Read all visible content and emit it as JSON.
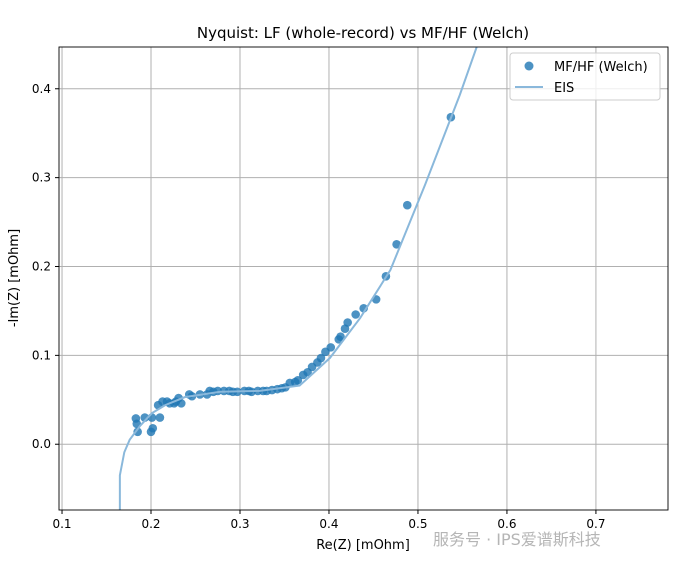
{
  "chart_data": {
    "type": "scatter",
    "title": "Nyquist: LF (whole-record) vs MF/HF (Welch)",
    "xlabel": "Re(Z) [mOhm]",
    "ylabel": "-Im(Z) [mOhm]",
    "xlim": [
      0.0966,
      0.781
    ],
    "ylim": [
      -0.074,
      0.447
    ],
    "xticks": [
      0.1,
      0.2,
      0.3,
      0.4,
      0.5,
      0.6,
      0.7
    ],
    "xtick_labels": [
      "0.1",
      "0.2",
      "0.3",
      "0.4",
      "0.5",
      "0.6",
      "0.7"
    ],
    "yticks": [
      0.0,
      0.1,
      0.2,
      0.3,
      0.4
    ],
    "ytick_labels": [
      "0.0",
      "0.1",
      "0.2",
      "0.3",
      "0.4"
    ],
    "grid": true,
    "legend": "top-right",
    "series": [
      {
        "name": "MF/HF (Welch)",
        "kind": "scatter",
        "color": "#1f77b4",
        "x": [
          0.183,
          0.184,
          0.185,
          0.193,
          0.201,
          0.2,
          0.202,
          0.21,
          0.208,
          0.213,
          0.218,
          0.221,
          0.226,
          0.228,
          0.231,
          0.234,
          0.243,
          0.246,
          0.255,
          0.263,
          0.266,
          0.27,
          0.275,
          0.282,
          0.288,
          0.292,
          0.297,
          0.305,
          0.31,
          0.313,
          0.32,
          0.326,
          0.33,
          0.336,
          0.342,
          0.347,
          0.351,
          0.356,
          0.362,
          0.365,
          0.371,
          0.376,
          0.381,
          0.387,
          0.391,
          0.396,
          0.402,
          0.411,
          0.413,
          0.418,
          0.421,
          0.43,
          0.439,
          0.453,
          0.464,
          0.476,
          0.488,
          0.537
        ],
        "y": [
          0.029,
          0.023,
          0.014,
          0.03,
          0.03,
          0.014,
          0.018,
          0.03,
          0.044,
          0.048,
          0.048,
          0.046,
          0.046,
          0.048,
          0.052,
          0.046,
          0.056,
          0.054,
          0.056,
          0.056,
          0.06,
          0.059,
          0.06,
          0.06,
          0.06,
          0.059,
          0.059,
          0.06,
          0.06,
          0.059,
          0.06,
          0.06,
          0.06,
          0.061,
          0.062,
          0.063,
          0.064,
          0.069,
          0.07,
          0.072,
          0.078,
          0.081,
          0.087,
          0.092,
          0.097,
          0.104,
          0.109,
          0.118,
          0.121,
          0.13,
          0.137,
          0.146,
          0.153,
          0.163,
          0.189,
          0.225,
          0.269,
          0.368
        ]
      },
      {
        "name": "EIS",
        "kind": "line",
        "color": "#8ab8db",
        "x": [
          0.165,
          0.165,
          0.17,
          0.176,
          0.188,
          0.201,
          0.216,
          0.238,
          0.278,
          0.322,
          0.367,
          0.401,
          0.435,
          0.469,
          0.508,
          0.547,
          0.566
        ],
        "y": [
          -0.074,
          -0.035,
          -0.009,
          0.005,
          0.021,
          0.035,
          0.044,
          0.053,
          0.059,
          0.06,
          0.066,
          0.097,
          0.142,
          0.196,
          0.292,
          0.393,
          0.447
        ]
      }
    ]
  },
  "watermark": "服务号 · IPS爱谱斯科技"
}
